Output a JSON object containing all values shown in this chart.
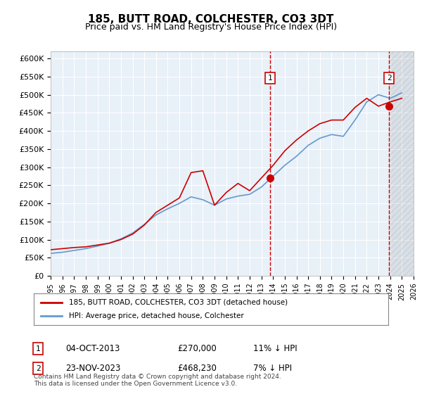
{
  "title": "185, BUTT ROAD, COLCHESTER, CO3 3DT",
  "subtitle": "Price paid vs. HM Land Registry's House Price Index (HPI)",
  "ylabel": "",
  "xlabel": "",
  "ylim": [
    0,
    620000
  ],
  "yticks": [
    0,
    50000,
    100000,
    150000,
    200000,
    250000,
    300000,
    350000,
    400000,
    450000,
    500000,
    550000,
    600000
  ],
  "ytick_labels": [
    "£0",
    "£50K",
    "£100K",
    "£150K",
    "£200K",
    "£250K",
    "£300K",
    "£350K",
    "£400K",
    "£450K",
    "£500K",
    "£550K",
    "£600K"
  ],
  "background_color": "#ffffff",
  "plot_bg_color": "#e8f0f8",
  "grid_color": "#ffffff",
  "legend_label_red": "185, BUTT ROAD, COLCHESTER, CO3 3DT (detached house)",
  "legend_label_blue": "HPI: Average price, detached house, Colchester",
  "sale1_date": "04-OCT-2013",
  "sale1_price": 270000,
  "sale1_label": "1",
  "sale1_note": "11% ↓ HPI",
  "sale2_date": "23-NOV-2023",
  "sale2_price": 468230,
  "sale2_label": "2",
  "sale2_note": "7% ↓ HPI",
  "footer": "Contains HM Land Registry data © Crown copyright and database right 2024.\nThis data is licensed under the Open Government Licence v3.0.",
  "hpi_color": "#6699cc",
  "price_color": "#cc0000",
  "vline_color": "#cc0000",
  "marker_color": "#cc0000",
  "hpi_years": [
    1995,
    1996,
    1997,
    1998,
    1999,
    2000,
    2001,
    2002,
    2003,
    2004,
    2005,
    2006,
    2007,
    2008,
    2009,
    2010,
    2011,
    2012,
    2013,
    2014,
    2015,
    2016,
    2017,
    2018,
    2019,
    2020,
    2021,
    2022,
    2023,
    2024,
    2025
  ],
  "hpi_values": [
    62000,
    65000,
    70000,
    75000,
    82000,
    90000,
    102000,
    118000,
    142000,
    168000,
    185000,
    200000,
    218000,
    210000,
    195000,
    212000,
    220000,
    225000,
    245000,
    275000,
    305000,
    330000,
    360000,
    380000,
    390000,
    385000,
    430000,
    480000,
    500000,
    490000,
    505000
  ],
  "price_years": [
    1995,
    1996,
    1997,
    1998,
    1999,
    2000,
    2001,
    2002,
    2003,
    2004,
    2005,
    2006,
    2007,
    2008,
    2009,
    2010,
    2011,
    2012,
    2013,
    2014,
    2015,
    2016,
    2017,
    2018,
    2019,
    2020,
    2021,
    2022,
    2023,
    2024,
    2025
  ],
  "price_values": [
    72000,
    75000,
    78000,
    80000,
    85000,
    90000,
    100000,
    115000,
    140000,
    175000,
    195000,
    215000,
    285000,
    290000,
    195000,
    230000,
    255000,
    235000,
    270000,
    305000,
    345000,
    375000,
    400000,
    420000,
    430000,
    430000,
    465000,
    490000,
    468230,
    480000,
    490000
  ],
  "sale1_x": 2013.75,
  "sale2_x": 2023.9,
  "xtick_years": [
    1995,
    1996,
    1997,
    1998,
    1999,
    2000,
    2001,
    2002,
    2003,
    2004,
    2005,
    2006,
    2007,
    2008,
    2009,
    2010,
    2011,
    2012,
    2013,
    2014,
    2015,
    2016,
    2017,
    2018,
    2019,
    2020,
    2021,
    2022,
    2023,
    2024,
    2025,
    2026
  ]
}
